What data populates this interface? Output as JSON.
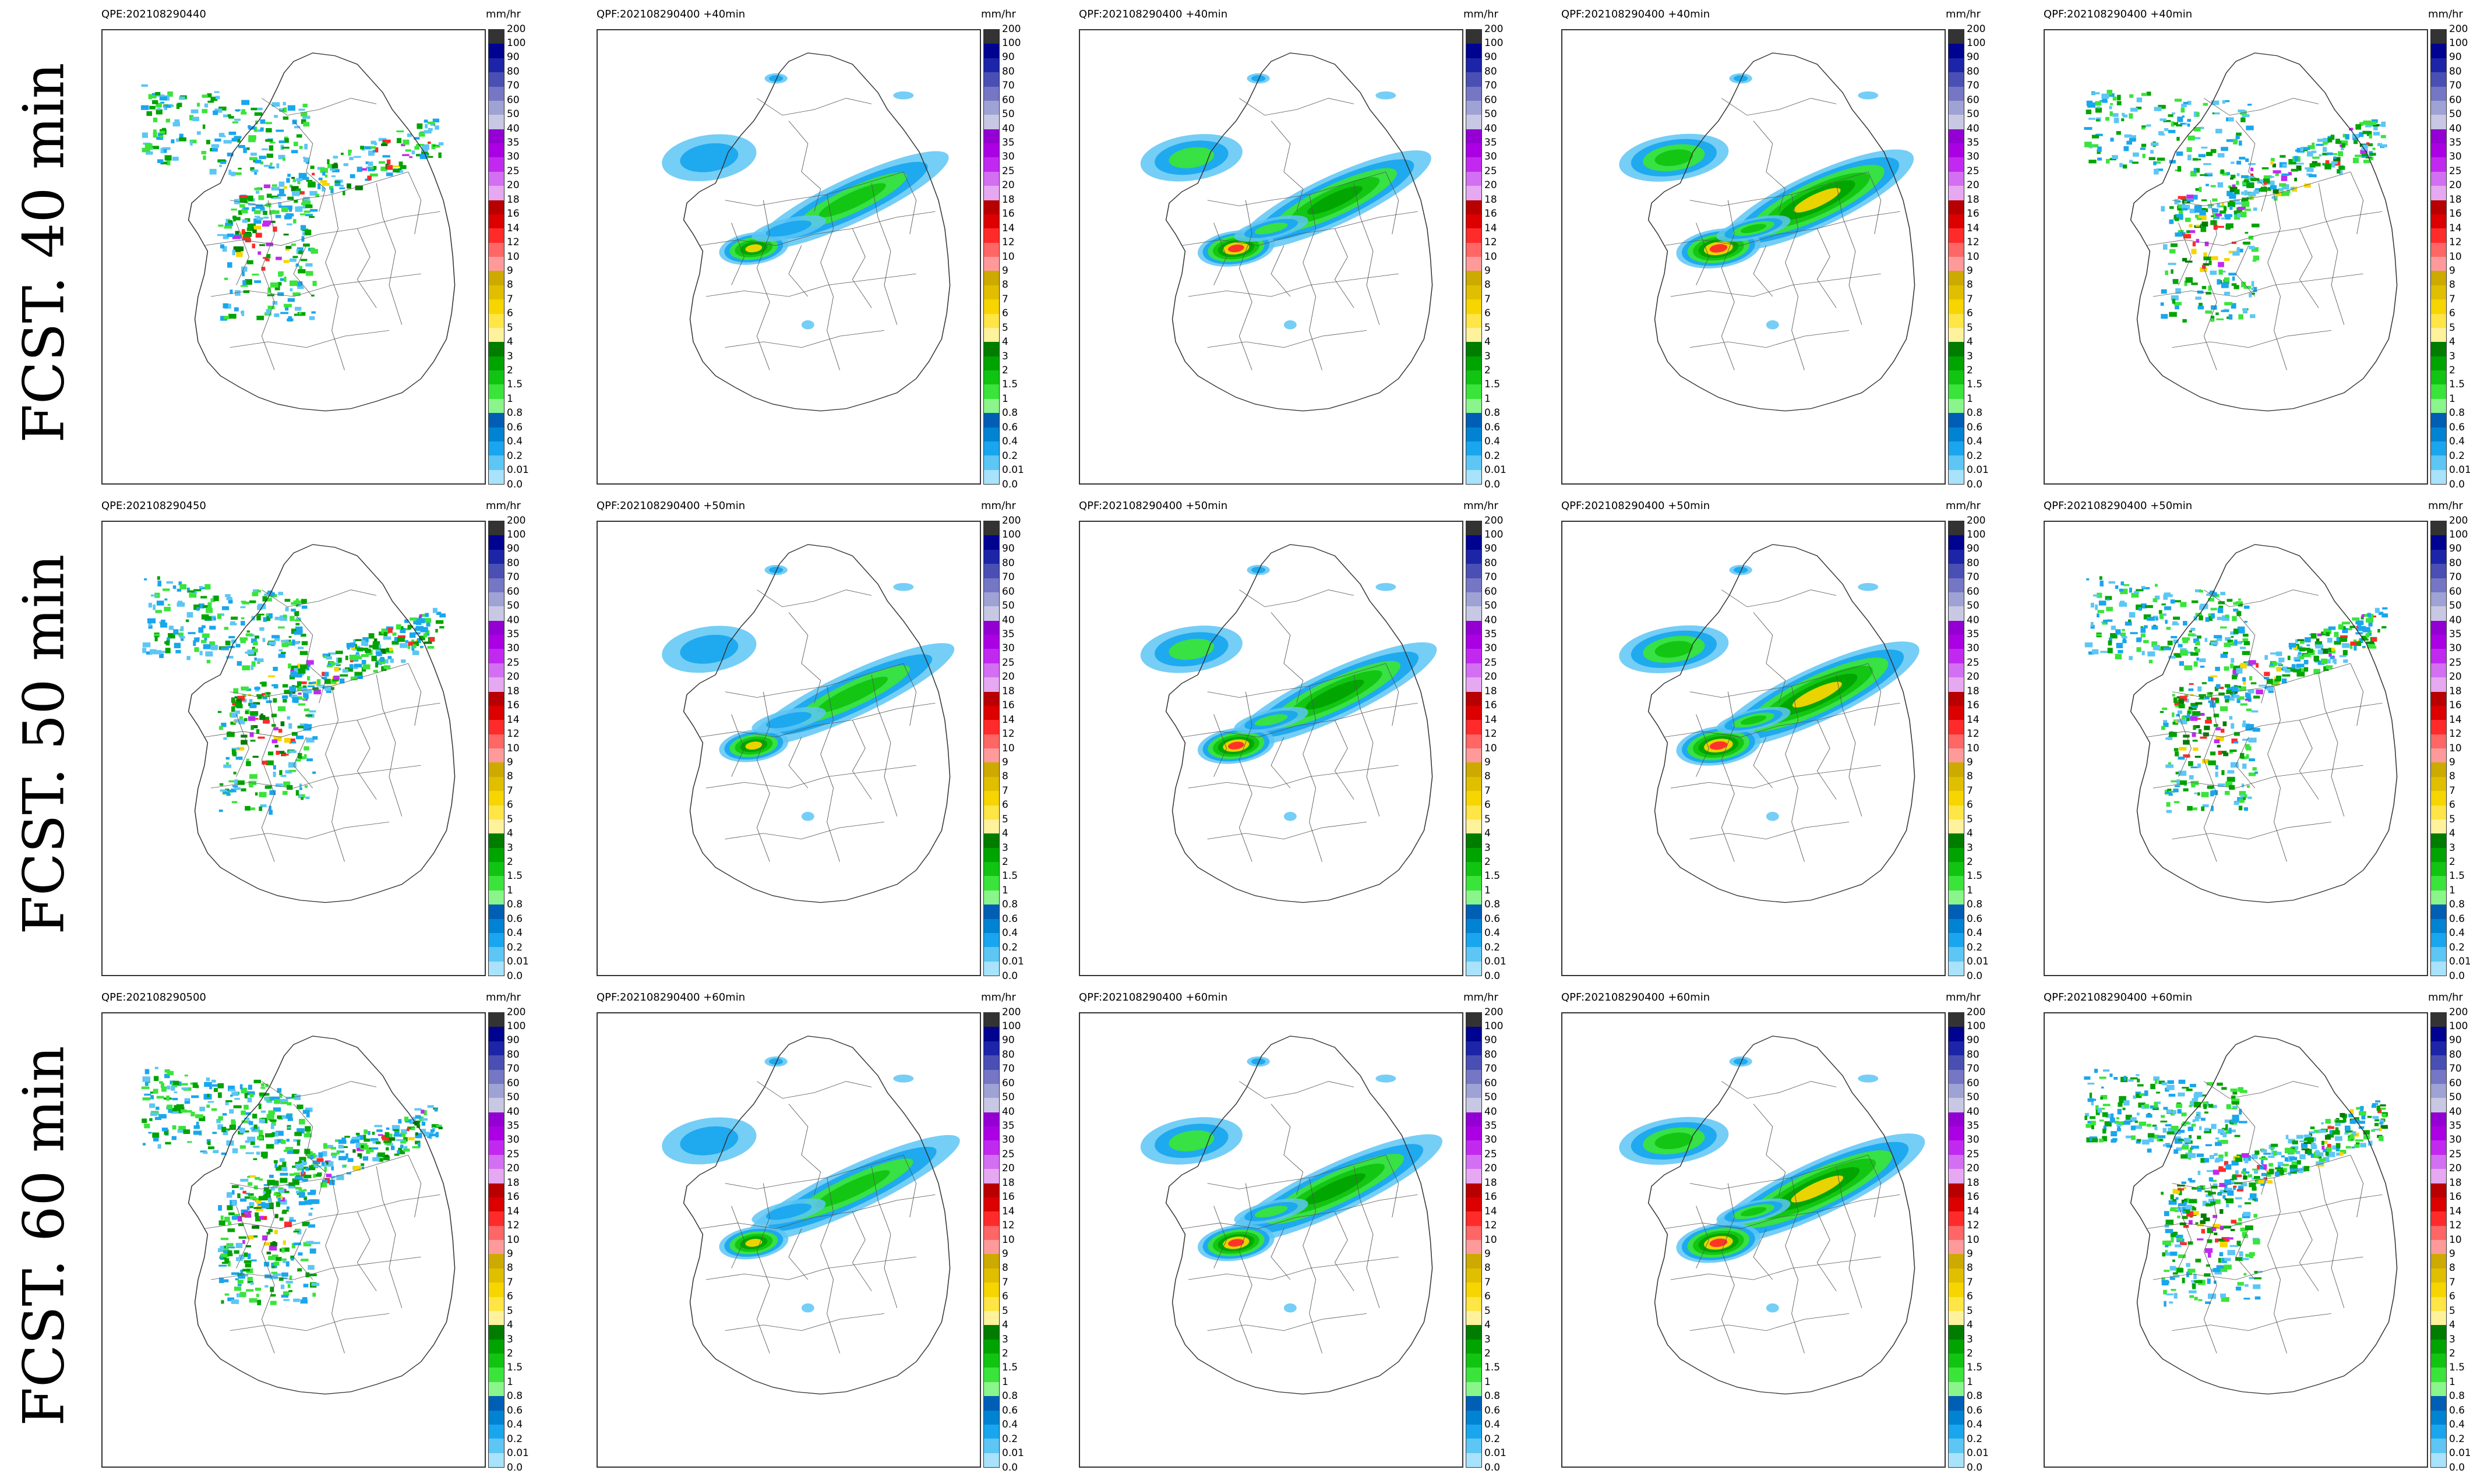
{
  "row_labels": [
    "FCST. 40 min",
    "FCST. 50 min",
    "FCST. 60 min"
  ],
  "unit_label": "mm/hr",
  "colorbar": {
    "ticks": [
      "200",
      "100",
      "90",
      "80",
      "70",
      "60",
      "50",
      "40",
      "35",
      "30",
      "25",
      "20",
      "18",
      "16",
      "14",
      "12",
      "10",
      "9",
      "8",
      "7",
      "6",
      "5",
      "4",
      "3",
      "2",
      "1.5",
      "1",
      "0.8",
      "0.6",
      "0.4",
      "0.2",
      "0.01",
      "0.0"
    ],
    "colors": [
      "#333333",
      "#000390",
      "#1c24a8",
      "#4a4fb4",
      "#7577c4",
      "#9fa2d4",
      "#c9c8e4",
      "#9400d3",
      "#ab00e3",
      "#c229f0",
      "#d36ff2",
      "#e6a8f0",
      "#b80000",
      "#dc0000",
      "#ff2b2b",
      "#ff6666",
      "#ff9a9a",
      "#ccaa00",
      "#e0bf00",
      "#f6d500",
      "#ffe545",
      "#fff29c",
      "#007d00",
      "#00a400",
      "#11c411",
      "#3ae43a",
      "#8af58a",
      "#005fb5",
      "#0083d3",
      "#1aa6ee",
      "#5dc6f5",
      "#a8e2fb"
    ]
  },
  "rows": [
    {
      "panels": [
        {
          "title": "QPE:202108290440",
          "pattern": "obs"
        },
        {
          "title": "QPF:202108290400 +40min",
          "pattern": "smooth1"
        },
        {
          "title": "QPF:202108290400 +40min",
          "pattern": "smooth2"
        },
        {
          "title": "QPF:202108290400 +40min",
          "pattern": "smooth3"
        },
        {
          "title": "QPF:202108290400 +40min",
          "pattern": "speckle"
        }
      ]
    },
    {
      "panels": [
        {
          "title": "QPE:202108290450",
          "pattern": "obs"
        },
        {
          "title": "QPF:202108290400 +50min",
          "pattern": "smooth1"
        },
        {
          "title": "QPF:202108290400 +50min",
          "pattern": "smooth2"
        },
        {
          "title": "QPF:202108290400 +50min",
          "pattern": "smooth3"
        },
        {
          "title": "QPF:202108290400 +50min",
          "pattern": "speckle"
        }
      ]
    },
    {
      "panels": [
        {
          "title": "QPE:202108290500",
          "pattern": "obs"
        },
        {
          "title": "QPF:202108290400 +60min",
          "pattern": "smooth1"
        },
        {
          "title": "QPF:202108290400 +60min",
          "pattern": "smooth2"
        },
        {
          "title": "QPF:202108290400 +60min",
          "pattern": "smooth3"
        },
        {
          "title": "QPF:202108290400 +60min",
          "pattern": "speckle"
        }
      ]
    }
  ]
}
